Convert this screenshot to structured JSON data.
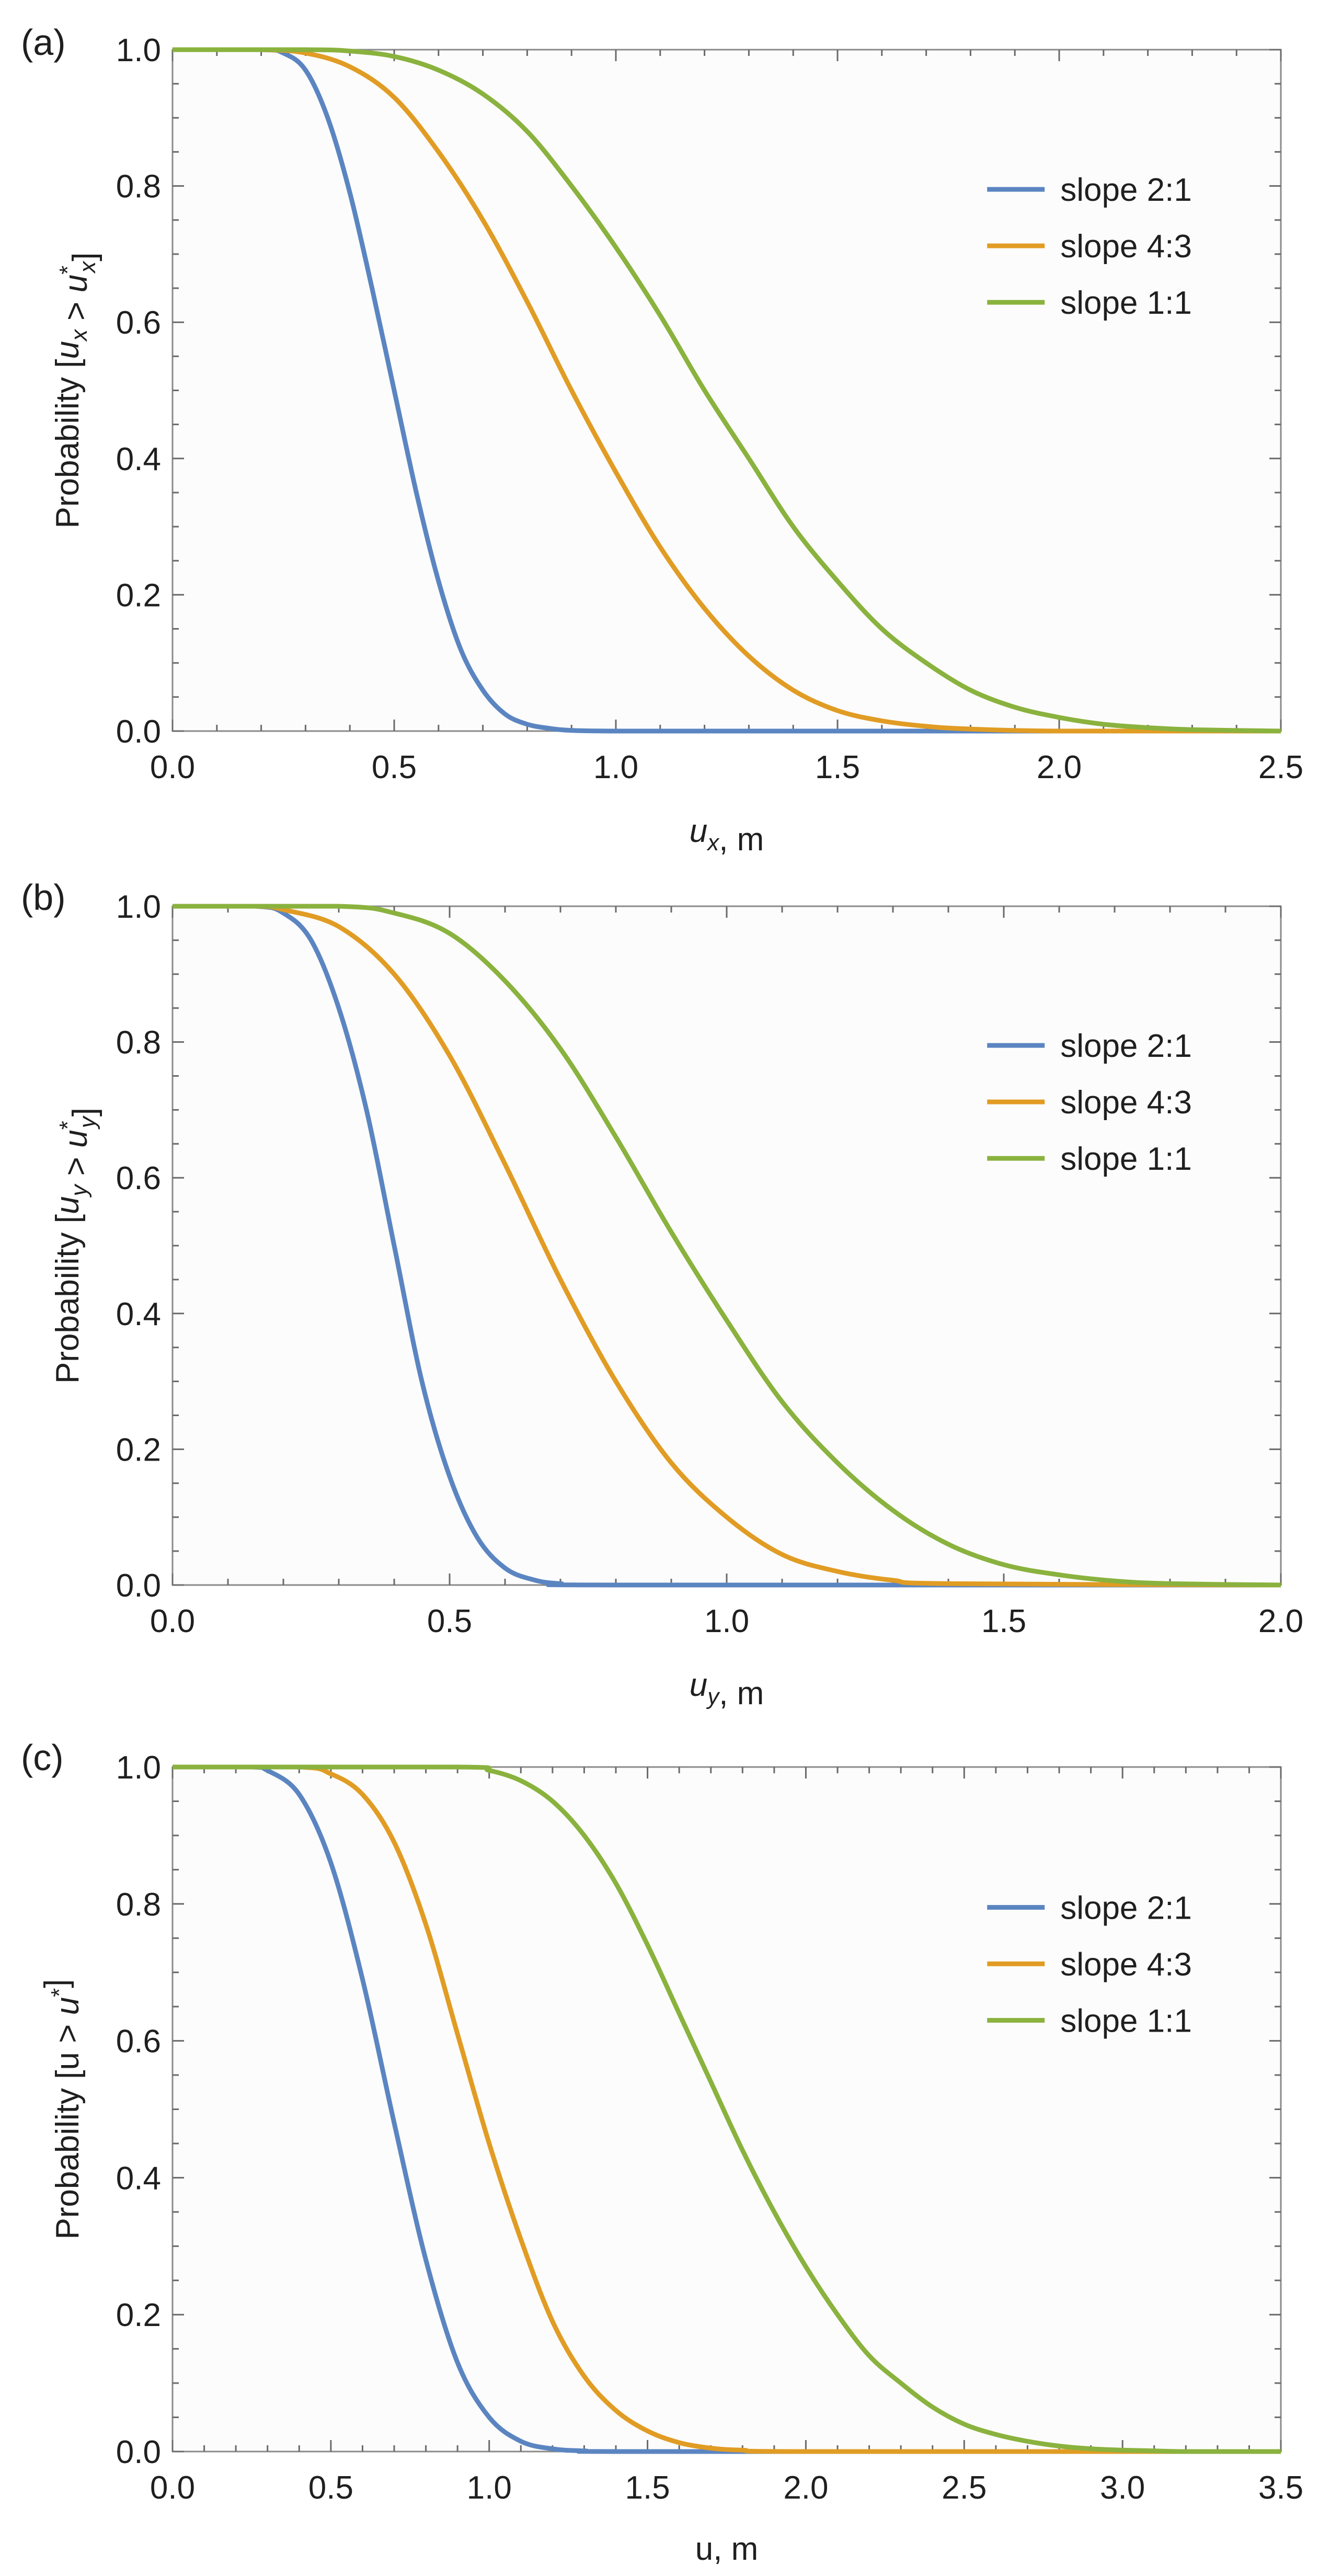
{
  "figure": {
    "background": "#ffffff",
    "plot_background": "#fcfcfc",
    "frame_color": "#8a8a8a"
  },
  "series_style": [
    {
      "name": "slope 2:1",
      "color": "#5b85c1"
    },
    {
      "name": "slope 4:3",
      "color": "#e19c24"
    },
    {
      "name": "slope 1:1",
      "color": "#8ab23e"
    }
  ],
  "chart_data": [
    {
      "panel": "(a)",
      "type": "line",
      "title": "",
      "ylabel": "Probability [u_x > u*_x]",
      "xlabel": "u_x, m",
      "xlim": [
        0,
        2.5
      ],
      "ylim": [
        0,
        1
      ],
      "xticks": [
        "0.0",
        "0.5",
        "1.0",
        "1.5",
        "2.0",
        "2.5"
      ],
      "yticks": [
        "0.0",
        "0.2",
        "0.4",
        "0.6",
        "0.8",
        "1.0"
      ],
      "legend_position": "right-upper",
      "series": [
        {
          "name": "slope 2:1",
          "x": [
            0.0,
            0.2,
            0.25,
            0.3,
            0.35,
            0.4,
            0.45,
            0.5,
            0.55,
            0.6,
            0.65,
            0.7,
            0.75,
            0.8,
            0.85,
            0.9,
            1.0,
            1.2,
            2.5
          ],
          "values": [
            1.0,
            1.0,
            0.995,
            0.97,
            0.9,
            0.79,
            0.65,
            0.5,
            0.35,
            0.22,
            0.12,
            0.06,
            0.025,
            0.01,
            0.004,
            0.001,
            0.0,
            0.0,
            0.0
          ]
        },
        {
          "name": "slope 4:3",
          "x": [
            0.0,
            0.2,
            0.3,
            0.4,
            0.5,
            0.6,
            0.7,
            0.8,
            0.9,
            1.0,
            1.1,
            1.2,
            1.3,
            1.4,
            1.5,
            1.6,
            1.7,
            1.8,
            2.0,
            2.5
          ],
          "values": [
            1.0,
            1.0,
            0.995,
            0.975,
            0.93,
            0.85,
            0.75,
            0.63,
            0.5,
            0.38,
            0.27,
            0.18,
            0.11,
            0.06,
            0.03,
            0.015,
            0.007,
            0.003,
            0.0,
            0.0
          ]
        },
        {
          "name": "slope 1:1",
          "x": [
            0.0,
            0.3,
            0.4,
            0.5,
            0.6,
            0.7,
            0.8,
            0.9,
            1.0,
            1.1,
            1.2,
            1.3,
            1.4,
            1.5,
            1.6,
            1.7,
            1.8,
            1.9,
            2.0,
            2.1,
            2.2,
            2.3,
            2.5
          ],
          "values": [
            1.0,
            1.0,
            0.998,
            0.99,
            0.97,
            0.935,
            0.88,
            0.8,
            0.71,
            0.61,
            0.5,
            0.4,
            0.3,
            0.22,
            0.15,
            0.1,
            0.06,
            0.035,
            0.02,
            0.01,
            0.005,
            0.002,
            0.0
          ]
        }
      ]
    },
    {
      "panel": "(b)",
      "type": "line",
      "title": "",
      "ylabel": "Probability [u_y > u*_y]",
      "xlabel": "u_y, m",
      "xlim": [
        0,
        2.0
      ],
      "ylim": [
        0,
        1
      ],
      "xticks": [
        "0.0",
        "0.5",
        "1.0",
        "1.5",
        "2.0"
      ],
      "yticks": [
        "0.0",
        "0.2",
        "0.4",
        "0.6",
        "0.8",
        "1.0"
      ],
      "legend_position": "right-upper",
      "series": [
        {
          "name": "slope 2:1",
          "x": [
            0.0,
            0.15,
            0.2,
            0.25,
            0.3,
            0.35,
            0.4,
            0.45,
            0.5,
            0.55,
            0.6,
            0.65,
            0.7,
            0.8,
            2.0
          ],
          "values": [
            1.0,
            1.0,
            0.99,
            0.95,
            0.85,
            0.7,
            0.5,
            0.3,
            0.16,
            0.07,
            0.025,
            0.008,
            0.002,
            0.0,
            0.0
          ]
        },
        {
          "name": "slope 4:3",
          "x": [
            0.0,
            0.15,
            0.2,
            0.3,
            0.4,
            0.5,
            0.6,
            0.7,
            0.8,
            0.9,
            1.0,
            1.1,
            1.2,
            1.3,
            1.4,
            2.0
          ],
          "values": [
            1.0,
            1.0,
            0.995,
            0.97,
            0.9,
            0.78,
            0.62,
            0.45,
            0.3,
            0.18,
            0.1,
            0.045,
            0.02,
            0.007,
            0.002,
            0.0
          ]
        },
        {
          "name": "slope 1:1",
          "x": [
            0.0,
            0.3,
            0.4,
            0.5,
            0.6,
            0.7,
            0.8,
            0.9,
            1.0,
            1.1,
            1.2,
            1.3,
            1.4,
            1.5,
            1.6,
            1.7,
            1.8,
            2.0
          ],
          "values": [
            1.0,
            1.0,
            0.99,
            0.96,
            0.89,
            0.79,
            0.66,
            0.52,
            0.39,
            0.27,
            0.18,
            0.11,
            0.06,
            0.03,
            0.015,
            0.006,
            0.002,
            0.0
          ]
        }
      ]
    },
    {
      "panel": "(c)",
      "type": "line",
      "title": "",
      "ylabel": "Probability [u > u*]",
      "xlabel": "u, m",
      "xlim": [
        0,
        3.5
      ],
      "ylim": [
        0,
        1
      ],
      "xticks": [
        "0.0",
        "0.5",
        "1.0",
        "1.5",
        "2.0",
        "2.5",
        "3.0",
        "3.5"
      ],
      "yticks": [
        "0.0",
        "0.2",
        "0.4",
        "0.6",
        "0.8",
        "1.0"
      ],
      "legend_position": "right-upper",
      "series": [
        {
          "name": "slope 2:1",
          "x": [
            0.0,
            0.25,
            0.3,
            0.4,
            0.5,
            0.6,
            0.7,
            0.8,
            0.9,
            1.0,
            1.1,
            1.2,
            1.3,
            1.5,
            3.5
          ],
          "values": [
            1.0,
            1.0,
            0.995,
            0.96,
            0.86,
            0.69,
            0.48,
            0.28,
            0.13,
            0.05,
            0.015,
            0.004,
            0.001,
            0.0,
            0.0
          ]
        },
        {
          "name": "slope 4:3",
          "x": [
            0.0,
            0.4,
            0.5,
            0.6,
            0.7,
            0.8,
            0.9,
            1.0,
            1.1,
            1.2,
            1.3,
            1.4,
            1.5,
            1.6,
            1.7,
            1.8,
            2.0,
            3.5
          ],
          "values": [
            1.0,
            1.0,
            0.99,
            0.96,
            0.89,
            0.77,
            0.61,
            0.45,
            0.31,
            0.19,
            0.11,
            0.06,
            0.03,
            0.013,
            0.005,
            0.002,
            0.0,
            0.0
          ]
        },
        {
          "name": "slope 1:1",
          "x": [
            0.0,
            0.9,
            1.0,
            1.1,
            1.2,
            1.3,
            1.4,
            1.5,
            1.6,
            1.7,
            1.8,
            1.9,
            2.0,
            2.1,
            2.2,
            2.3,
            2.4,
            2.5,
            2.6,
            2.7,
            2.8,
            2.9,
            3.0,
            3.1,
            3.2,
            3.5
          ],
          "values": [
            1.0,
            1.0,
            0.995,
            0.98,
            0.95,
            0.9,
            0.83,
            0.74,
            0.64,
            0.54,
            0.44,
            0.35,
            0.27,
            0.2,
            0.14,
            0.1,
            0.065,
            0.04,
            0.025,
            0.015,
            0.008,
            0.004,
            0.002,
            0.001,
            0.0,
            0.0
          ]
        }
      ]
    }
  ]
}
